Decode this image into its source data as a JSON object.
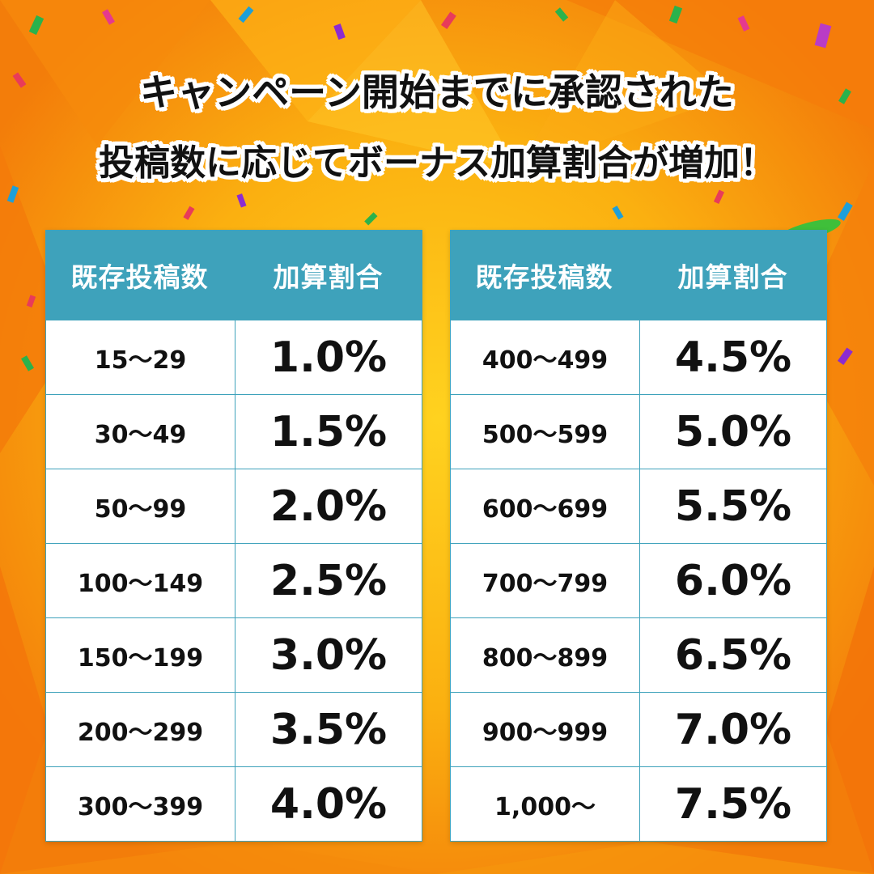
{
  "headline": {
    "line1": "キャンペーン開始までに承認された",
    "line2": "投稿数に応じてボーナス加算割合が増加！"
  },
  "table_headers": {
    "range": "既存投稿数",
    "rate": "加算割合"
  },
  "left_table": [
    {
      "range": "15〜29",
      "rate": "1.0%"
    },
    {
      "range": "30〜49",
      "rate": "1.5%"
    },
    {
      "range": "50〜99",
      "rate": "2.0%"
    },
    {
      "range": "100〜149",
      "rate": "2.5%"
    },
    {
      "range": "150〜199",
      "rate": "3.0%"
    },
    {
      "range": "200〜299",
      "rate": "3.5%"
    },
    {
      "range": "300〜399",
      "rate": "4.0%"
    }
  ],
  "right_table": [
    {
      "range": "400〜499",
      "rate": "4.5%"
    },
    {
      "range": "500〜599",
      "rate": "5.0%"
    },
    {
      "range": "600〜699",
      "rate": "5.5%"
    },
    {
      "range": "700〜799",
      "rate": "6.0%"
    },
    {
      "range": "800〜899",
      "rate": "6.5%"
    },
    {
      "range": "900〜999",
      "rate": "7.0%"
    },
    {
      "range": "1,000〜",
      "rate": "7.5%"
    }
  ],
  "colors": {
    "header_bg": "#3ea2bb",
    "background_orange": "#f7920d",
    "background_yellow": "#ffc21a"
  }
}
